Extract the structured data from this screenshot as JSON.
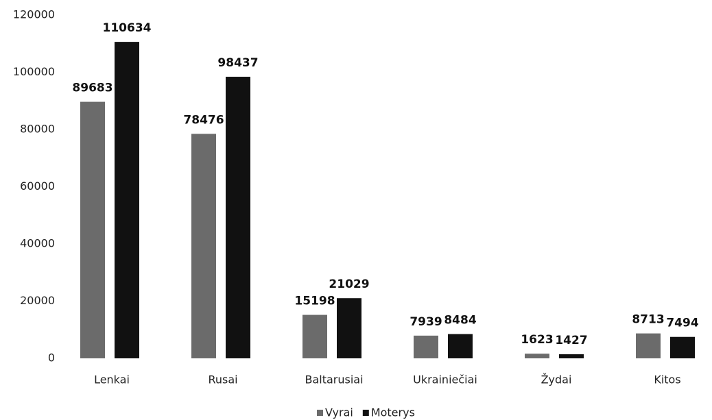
{
  "chart_data": {
    "type": "bar",
    "categories": [
      "Lenkai",
      "Rusai",
      "Baltarusiai",
      "Ukrainiečiai",
      "Žydai",
      "Kitos"
    ],
    "series": [
      {
        "name": "Vyrai",
        "color": "#6b6b6b",
        "values": [
          89683,
          78476,
          15198,
          7939,
          1623,
          8713
        ]
      },
      {
        "name": "Moterys",
        "color": "#111111",
        "values": [
          110634,
          98437,
          21029,
          8484,
          1427,
          7494
        ]
      }
    ],
    "ylim": [
      0,
      120000
    ],
    "yticks": [
      0,
      20000,
      40000,
      60000,
      80000,
      100000,
      120000
    ],
    "grid": false,
    "legend": "bottom"
  }
}
